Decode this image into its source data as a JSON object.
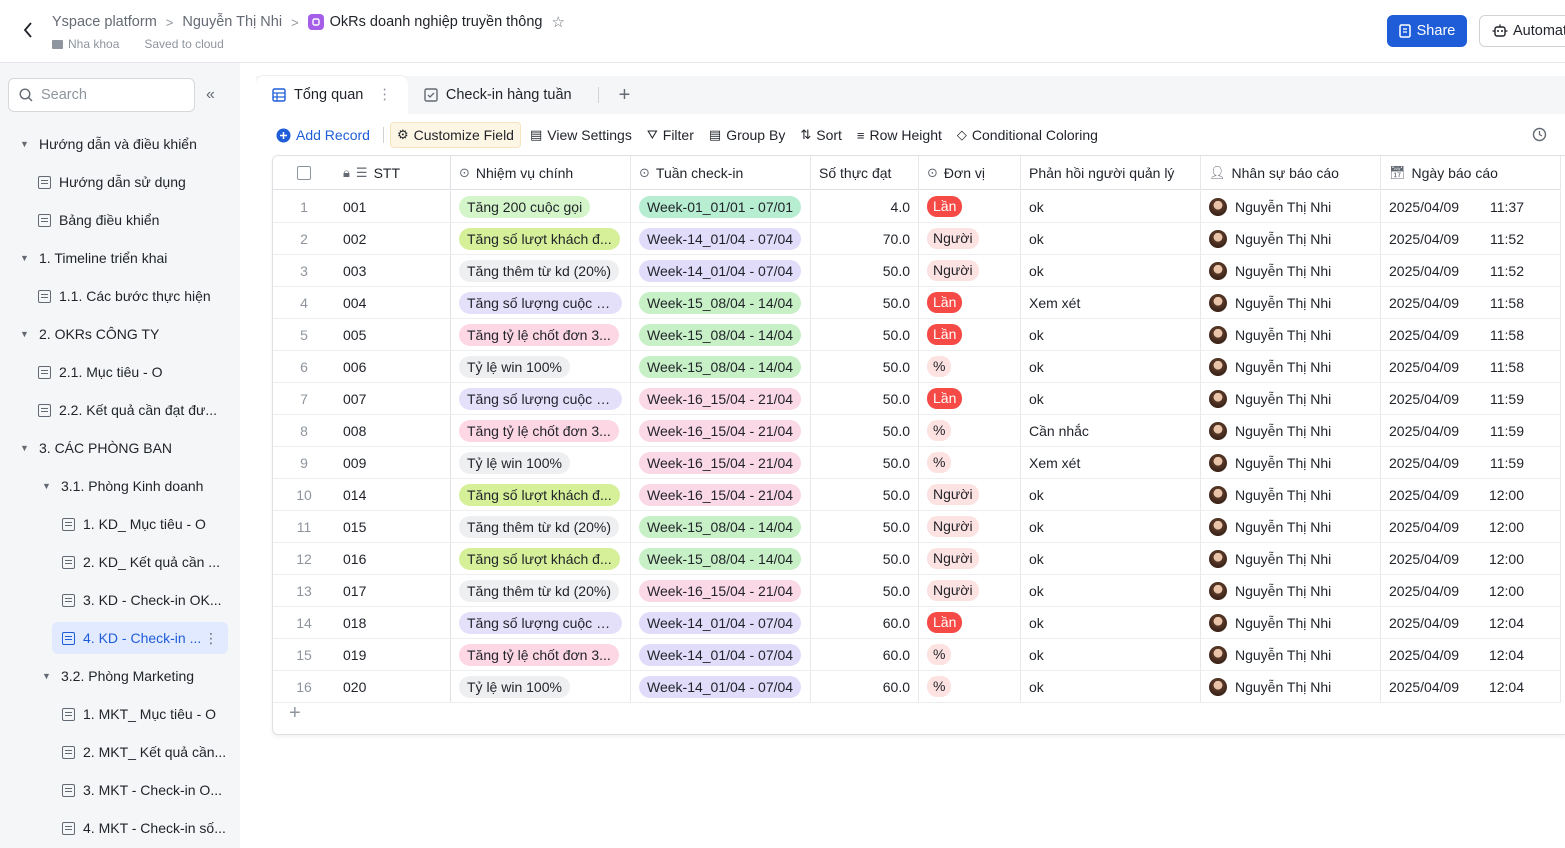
{
  "header": {
    "breadcrumbs": [
      "Yspace platform",
      "Nguyễn Thị Nhi",
      "OkRs doanh nghiệp truyền thông"
    ],
    "folder": "Nha khoa",
    "saved": "Saved to cloud",
    "share_label": "Share",
    "automate_label": "Automat"
  },
  "sidebar": {
    "search_placeholder": "Search",
    "items": [
      {
        "label": "Hướng dẫn và điều khiển",
        "type": "group"
      },
      {
        "label": "Hướng dẫn sử dụng",
        "type": "table"
      },
      {
        "label": "Bảng điều khiển",
        "type": "table"
      },
      {
        "label": "1. Timeline triển khai",
        "type": "group"
      },
      {
        "label": "1.1. Các bước thực hiện",
        "type": "table"
      },
      {
        "label": "2. OKRs CÔNG TY",
        "type": "group"
      },
      {
        "label": "2.1. Mục tiêu - O",
        "type": "table"
      },
      {
        "label": "2.2. Kết quả cần đạt đư...",
        "type": "table"
      },
      {
        "label": "3. CÁC PHÒNG BAN",
        "type": "group"
      },
      {
        "label": "3.1. Phòng Kinh doanh",
        "type": "group"
      },
      {
        "label": "1. KD_ Mục tiêu - O",
        "type": "table"
      },
      {
        "label": "2. KD_ Kết quả cần ...",
        "type": "table"
      },
      {
        "label": "3. KD - Check-in OK...",
        "type": "table"
      },
      {
        "label": "4. KD - Check-in ...",
        "type": "table",
        "active": true
      },
      {
        "label": "3.2. Phòng Marketing",
        "type": "group"
      },
      {
        "label": "1. MKT_ Mục tiêu - O",
        "type": "table"
      },
      {
        "label": "2. MKT_ Kết quả cần...",
        "type": "table"
      },
      {
        "label": "3. MKT - Check-in O...",
        "type": "table"
      },
      {
        "label": "4. MKT - Check-in số...",
        "type": "table"
      }
    ]
  },
  "tabs": [
    {
      "label": "Tổng quan",
      "active": true
    },
    {
      "label": "Check-in hàng tuần",
      "active": false
    }
  ],
  "toolbar": {
    "add_record": "Add Record",
    "customize_field": "Customize Field",
    "view_settings": "View Settings",
    "filter": "Filter",
    "group_by": "Group By",
    "sort": "Sort",
    "row_height": "Row Height",
    "conditional_coloring": "Conditional Coloring"
  },
  "columns": {
    "stt": "STT",
    "task": "Nhiệm vụ chính",
    "week": "Tuần check-in",
    "value": "Số thực đạt",
    "unit": "Đơn vị",
    "feedback": "Phản hồi người quản lý",
    "reporter": "Nhân sự báo cáo",
    "date": "Ngày báo cáo"
  },
  "tag_colors": {
    "task": {
      "Tăng 200 cuộc gọi": "#d4f5c9",
      "Tăng số lượt khách đ...": "#d6f09a",
      "Tăng thêm từ kd (20%)": "#eeeff1",
      "Tăng số lượng cuộc g...": "#e5e0fa",
      "Tăng tỷ lệ chốt đơn 3...": "#fdd7e4",
      "Tỷ lệ win 100%": "#eeeff1"
    },
    "week": {
      "Week-01_01/01 - 07/01": "#b7edd0",
      "Week-14_01/04 - 07/04": "#e0dcfa",
      "Week-15_08/04 - 14/04": "#c8f0c6",
      "Week-16_15/04 - 21/04": "#fbd8e6"
    },
    "unit": {
      "Lần": {
        "bg": "#f54a45",
        "fg": "#ffffff"
      },
      "Người": {
        "bg": "#fde2e2",
        "fg": "#1f2329"
      },
      "%": {
        "bg": "#fde2e2",
        "fg": "#1f2329"
      }
    }
  },
  "rows": [
    {
      "n": "1",
      "stt": "001",
      "task": "Tăng 200 cuộc gọi",
      "week": "Week-01_01/01 - 07/01",
      "value": "4.0",
      "unit": "Lần",
      "feedback": "ok",
      "reporter": "Nguyễn Thị  Nhi",
      "date": "2025/04/09",
      "time": "11:37"
    },
    {
      "n": "2",
      "stt": "002",
      "task": "Tăng số lượt khách đ...",
      "week": "Week-14_01/04 - 07/04",
      "value": "70.0",
      "unit": "Người",
      "feedback": "ok",
      "reporter": "Nguyễn Thị  Nhi",
      "date": "2025/04/09",
      "time": "11:52"
    },
    {
      "n": "3",
      "stt": "003",
      "task": "Tăng thêm từ kd (20%)",
      "week": "Week-14_01/04 - 07/04",
      "value": "50.0",
      "unit": "Người",
      "feedback": "ok",
      "reporter": "Nguyễn Thị  Nhi",
      "date": "2025/04/09",
      "time": "11:52"
    },
    {
      "n": "4",
      "stt": "004",
      "task": "Tăng số lượng cuộc g...",
      "week": "Week-15_08/04 - 14/04",
      "value": "50.0",
      "unit": "Lần",
      "feedback": "Xem xét",
      "reporter": "Nguyễn Thị  Nhi",
      "date": "2025/04/09",
      "time": "11:58"
    },
    {
      "n": "5",
      "stt": "005",
      "task": "Tăng tỷ lệ chốt đơn 3...",
      "week": "Week-15_08/04 - 14/04",
      "value": "50.0",
      "unit": "Lần",
      "feedback": "ok",
      "reporter": "Nguyễn Thị  Nhi",
      "date": "2025/04/09",
      "time": "11:58"
    },
    {
      "n": "6",
      "stt": "006",
      "task": "Tỷ lệ win 100%",
      "week": "Week-15_08/04 - 14/04",
      "value": "50.0",
      "unit": "%",
      "feedback": "ok",
      "reporter": "Nguyễn Thị  Nhi",
      "date": "2025/04/09",
      "time": "11:58"
    },
    {
      "n": "7",
      "stt": "007",
      "task": "Tăng số lượng cuộc g...",
      "week": "Week-16_15/04 - 21/04",
      "value": "50.0",
      "unit": "Lần",
      "feedback": "ok",
      "reporter": "Nguyễn Thị  Nhi",
      "date": "2025/04/09",
      "time": "11:59"
    },
    {
      "n": "8",
      "stt": "008",
      "task": "Tăng tỷ lệ chốt đơn 3...",
      "week": "Week-16_15/04 - 21/04",
      "value": "50.0",
      "unit": "%",
      "feedback": "Cần nhắc",
      "reporter": "Nguyễn Thị  Nhi",
      "date": "2025/04/09",
      "time": "11:59"
    },
    {
      "n": "9",
      "stt": "009",
      "task": "Tỷ lệ win 100%",
      "week": "Week-16_15/04 - 21/04",
      "value": "50.0",
      "unit": "%",
      "feedback": "Xem xét",
      "reporter": "Nguyễn Thị  Nhi",
      "date": "2025/04/09",
      "time": "11:59"
    },
    {
      "n": "10",
      "stt": "014",
      "task": "Tăng số lượt khách đ...",
      "week": "Week-16_15/04 - 21/04",
      "value": "50.0",
      "unit": "Người",
      "feedback": "ok",
      "reporter": "Nguyễn Thị  Nhi",
      "date": "2025/04/09",
      "time": "12:00"
    },
    {
      "n": "11",
      "stt": "015",
      "task": "Tăng thêm từ kd (20%)",
      "week": "Week-15_08/04 - 14/04",
      "value": "50.0",
      "unit": "Người",
      "feedback": "ok",
      "reporter": "Nguyễn Thị  Nhi",
      "date": "2025/04/09",
      "time": "12:00"
    },
    {
      "n": "12",
      "stt": "016",
      "task": "Tăng số lượt khách đ...",
      "week": "Week-15_08/04 - 14/04",
      "value": "50.0",
      "unit": "Người",
      "feedback": "ok",
      "reporter": "Nguyễn Thị  Nhi",
      "date": "2025/04/09",
      "time": "12:00"
    },
    {
      "n": "13",
      "stt": "017",
      "task": "Tăng thêm từ kd (20%)",
      "week": "Week-16_15/04 - 21/04",
      "value": "50.0",
      "unit": "Người",
      "feedback": "ok",
      "reporter": "Nguyễn Thị  Nhi",
      "date": "2025/04/09",
      "time": "12:00"
    },
    {
      "n": "14",
      "stt": "018",
      "task": "Tăng số lượng cuộc g...",
      "week": "Week-14_01/04 - 07/04",
      "value": "60.0",
      "unit": "Lần",
      "feedback": "ok",
      "reporter": "Nguyễn Thị  Nhi",
      "date": "2025/04/09",
      "time": "12:04"
    },
    {
      "n": "15",
      "stt": "019",
      "task": "Tăng tỷ lệ chốt đơn 3...",
      "week": "Week-14_01/04 - 07/04",
      "value": "60.0",
      "unit": "%",
      "feedback": "ok",
      "reporter": "Nguyễn Thị  Nhi",
      "date": "2025/04/09",
      "time": "12:04"
    },
    {
      "n": "16",
      "stt": "020",
      "task": "Tỷ lệ win 100%",
      "week": "Week-14_01/04 - 07/04",
      "value": "60.0",
      "unit": "%",
      "feedback": "ok",
      "reporter": "Nguyễn Thị  Nhi",
      "date": "2025/04/09",
      "time": "12:04"
    }
  ]
}
